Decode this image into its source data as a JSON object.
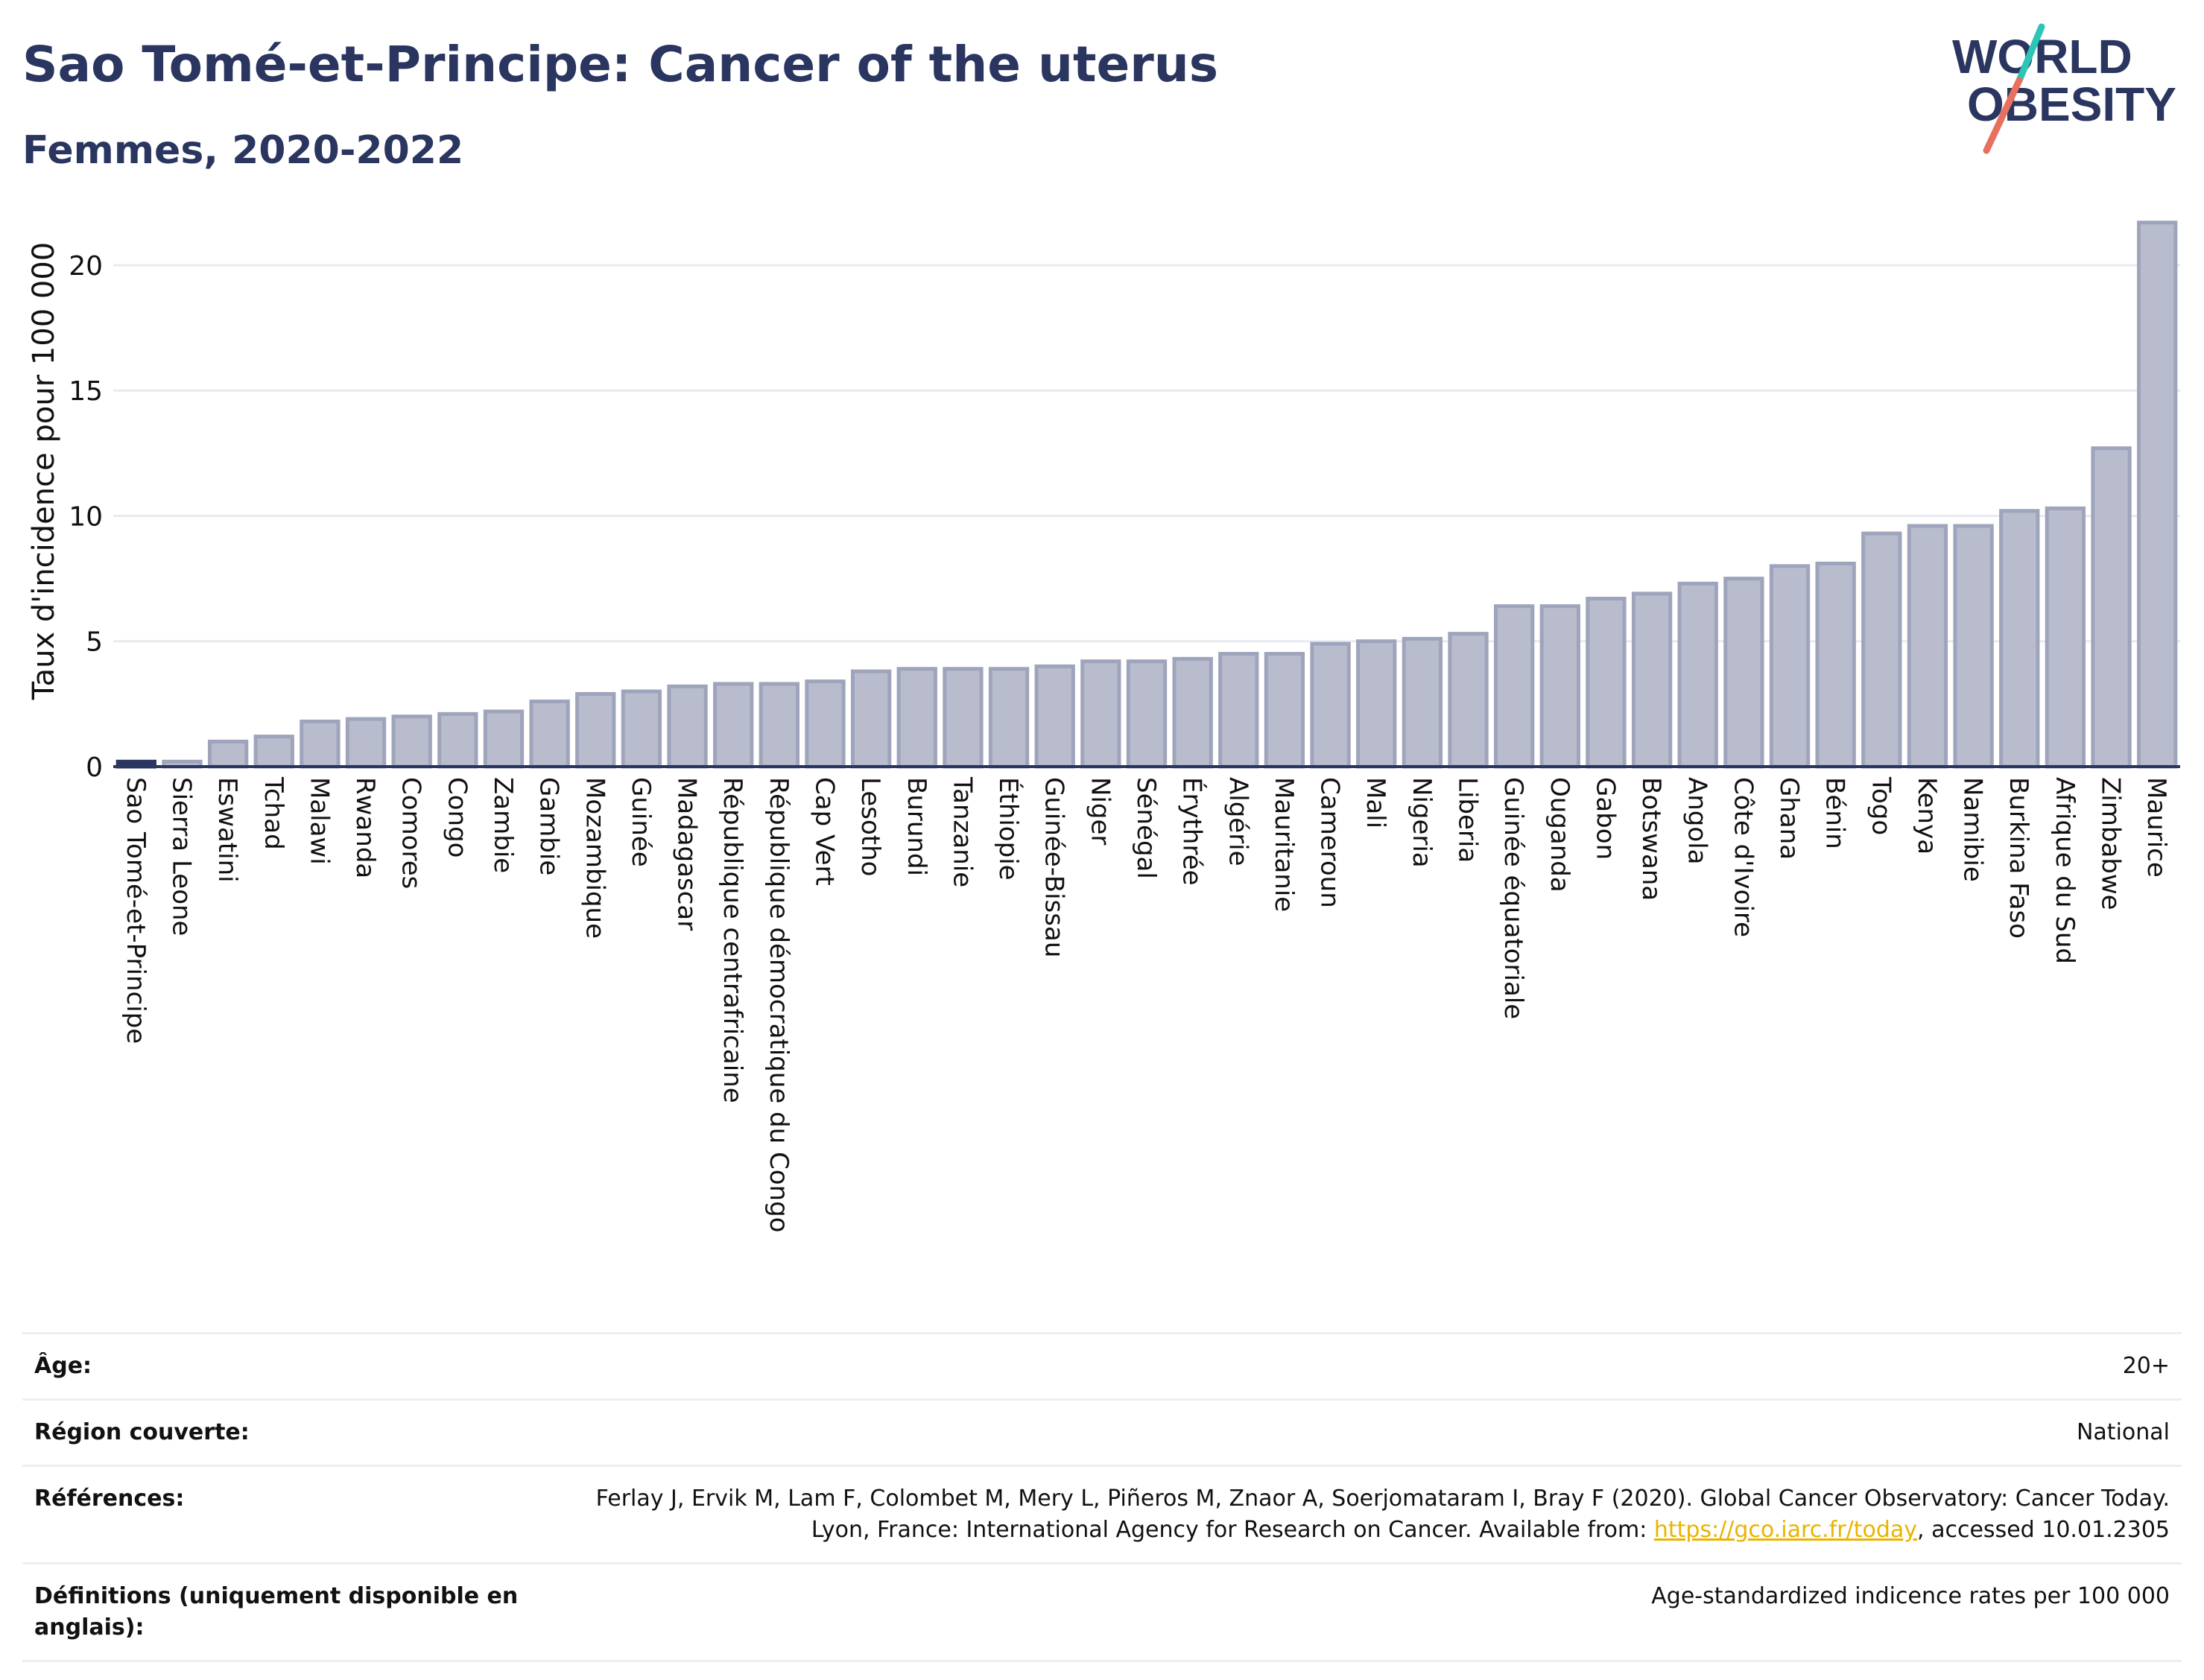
{
  "header": {
    "title": "Sao Tomé-et-Principe: Cancer of the uterus",
    "subtitle": "Femmes, 2020-2022"
  },
  "logo": {
    "line1": "WORLD",
    "line2": "OBESITY",
    "accent_teal": "#2ec4b6",
    "accent_coral": "#e8705f",
    "text_color": "#2a3560"
  },
  "colors": {
    "bar_fill": "#b8bccd",
    "bar_stroke": "#9ea4bb",
    "highlight": "#2a3560",
    "grid": "#e8eaf0",
    "axis": "#2a3560"
  },
  "chart_data": {
    "type": "bar",
    "ylabel": "Taux d'incidence pour 100 000",
    "ylim": [
      0,
      23
    ],
    "yticks": [
      0,
      5,
      10,
      15,
      20
    ],
    "grid": true,
    "highlight": "Sao Tomé-et-Principe",
    "categories": [
      "Sao Tomé-et-Principe",
      "Sierra Leone",
      "Eswatini",
      "Tchad",
      "Malawi",
      "Rwanda",
      "Comores",
      "Congo",
      "Zambie",
      "Gambie",
      "Mozambique",
      "Guinée",
      "Madagascar",
      "République centrafricaine",
      "République démocratique du Congo",
      "Cap Vert",
      "Lesotho",
      "Burundi",
      "Tanzanie",
      "Éthiopie",
      "Guinée-Bissau",
      "Niger",
      "Sénégal",
      "Érythrée",
      "Algérie",
      "Mauritanie",
      "Cameroun",
      "Mali",
      "Nigeria",
      "Liberia",
      "Guinée équatoriale",
      "Ouganda",
      "Gabon",
      "Botswana",
      "Angola",
      "Côte d'Ivoire",
      "Ghana",
      "Bénin",
      "Togo",
      "Kenya",
      "Namibie",
      "Burkina Faso",
      "Afrique du Sud",
      "Zimbabwe",
      "Maurice"
    ],
    "values": [
      0.2,
      0.2,
      1.0,
      1.2,
      1.8,
      1.9,
      2.0,
      2.1,
      2.2,
      2.6,
      2.9,
      3.0,
      3.2,
      3.3,
      3.3,
      3.4,
      3.8,
      3.9,
      3.9,
      3.9,
      4.0,
      4.2,
      4.2,
      4.3,
      4.5,
      4.5,
      4.9,
      5.0,
      5.1,
      5.3,
      6.4,
      6.4,
      6.7,
      6.9,
      7.3,
      7.5,
      8.0,
      8.1,
      9.3,
      9.6,
      9.6,
      10.2,
      10.3,
      12.7,
      21.7
    ]
  },
  "info": {
    "rows": [
      {
        "label": "Âge:",
        "value": "20+"
      },
      {
        "label": "Région couverte:",
        "value": "National"
      },
      {
        "label": "Références:",
        "value_pre": "Ferlay J, Ervik M, Lam F, Colombet M, Mery L, Piñeros M, Znaor A, Soerjomataram I, Bray F (2020). Global Cancer Observatory: Cancer Today. Lyon, France: International Agency for Research on Cancer. Available from: ",
        "link": "https://gco.iarc.fr/today",
        "value_post": ", accessed 10.01.2305"
      },
      {
        "label": "Définitions (uniquement disponible en anglais):",
        "value": "Age-standardized indicence rates per 100 000"
      }
    ]
  }
}
